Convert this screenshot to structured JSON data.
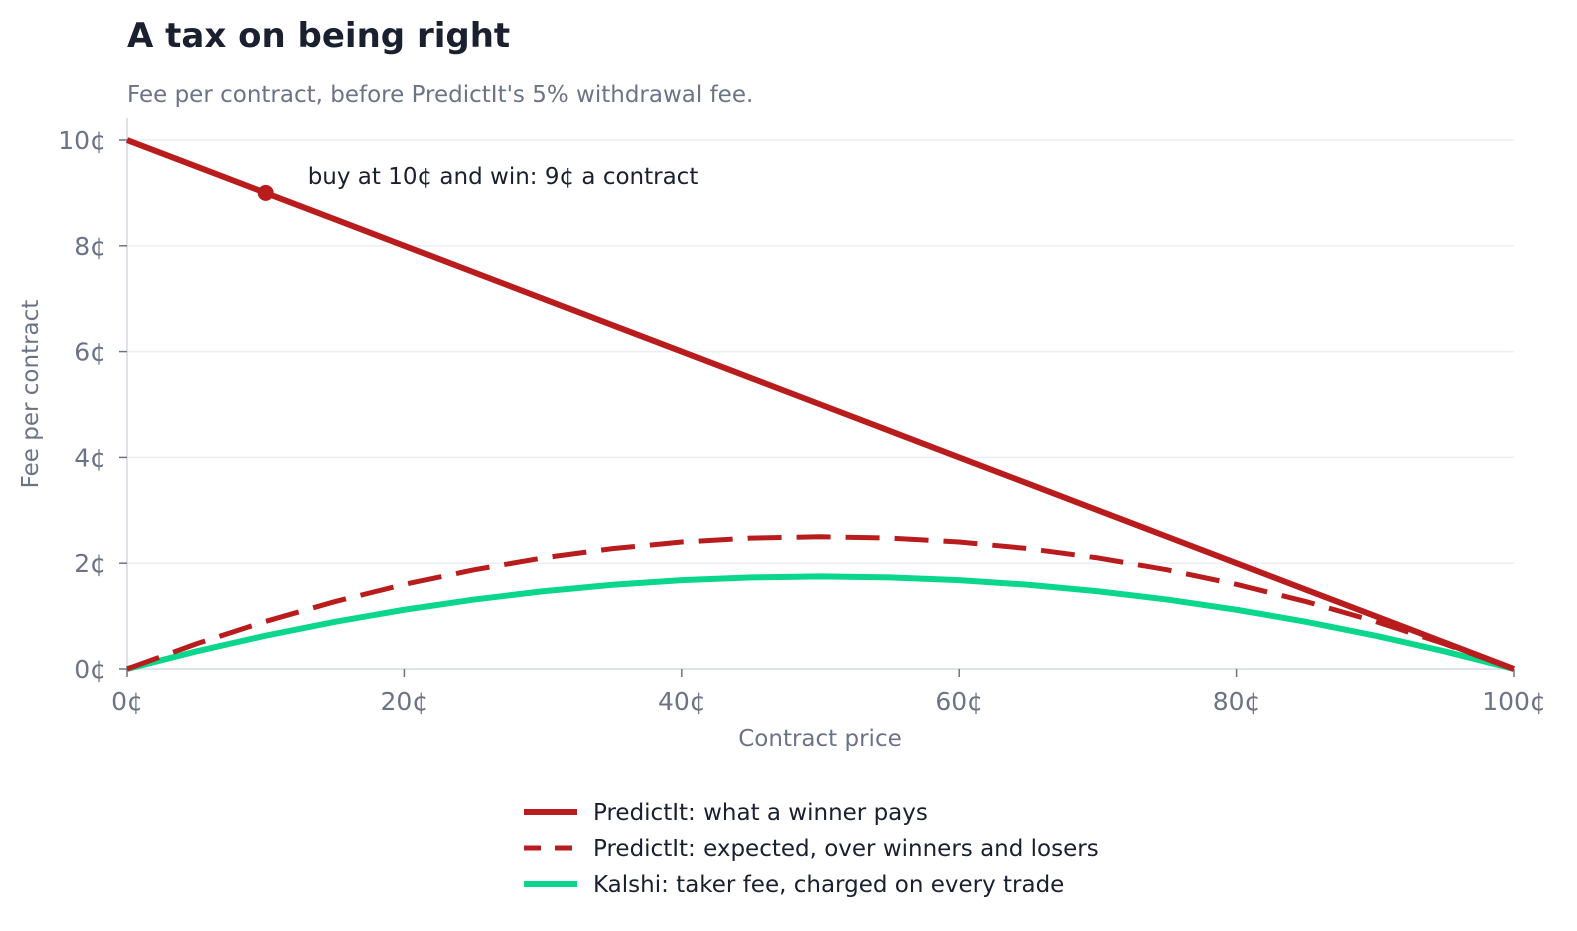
{
  "chart_data": {
    "type": "line",
    "title": "A tax on being right",
    "subtitle": "Fee per contract, before PredictIt's 5% withdrawal fee.",
    "xlabel": "Contract price",
    "ylabel": "Fee per contract",
    "xlim": [
      0,
      100
    ],
    "ylim": [
      0,
      10
    ],
    "x_ticks": [
      0,
      20,
      40,
      60,
      80,
      100
    ],
    "y_ticks": [
      0,
      2,
      4,
      6,
      8,
      10
    ],
    "x_tick_labels": [
      "0¢",
      "20¢",
      "40¢",
      "60¢",
      "80¢",
      "100¢"
    ],
    "y_tick_labels": [
      "0¢",
      "2¢",
      "4¢",
      "6¢",
      "8¢",
      "10¢"
    ],
    "grid": "horizontal",
    "legend_position": "bottom-center",
    "x": [
      0,
      5,
      10,
      15,
      20,
      25,
      30,
      35,
      40,
      45,
      50,
      55,
      60,
      65,
      70,
      75,
      80,
      85,
      90,
      95,
      100
    ],
    "series": [
      {
        "name": "PredictIt: what a winner pays",
        "color": "#b91c1c",
        "style": "solid",
        "values": [
          10,
          9.5,
          9,
          8.5,
          8,
          7.5,
          7,
          6.5,
          6,
          5.5,
          5,
          4.5,
          4,
          3.5,
          3,
          2.5,
          2,
          1.5,
          1,
          0.5,
          0
        ]
      },
      {
        "name": "PredictIt: expected, over winners and losers",
        "color": "#b91c1c",
        "style": "dashed",
        "values": [
          0,
          0.475,
          0.9,
          1.275,
          1.6,
          1.875,
          2.1,
          2.275,
          2.4,
          2.475,
          2.5,
          2.475,
          2.4,
          2.275,
          2.1,
          1.875,
          1.6,
          1.275,
          0.9,
          0.475,
          0
        ]
      },
      {
        "name": "Kalshi: taker fee, charged on every trade",
        "color": "#0ad68c",
        "style": "solid",
        "values": [
          0,
          0.3325,
          0.63,
          0.8925,
          1.12,
          1.3125,
          1.47,
          1.5925,
          1.68,
          1.7325,
          1.75,
          1.7325,
          1.68,
          1.5925,
          1.47,
          1.3125,
          1.12,
          0.8925,
          0.63,
          0.3325,
          0
        ]
      }
    ],
    "annotation": {
      "text": "buy at 10¢ and win: 9¢ a contract",
      "x": 10,
      "y": 9
    }
  }
}
